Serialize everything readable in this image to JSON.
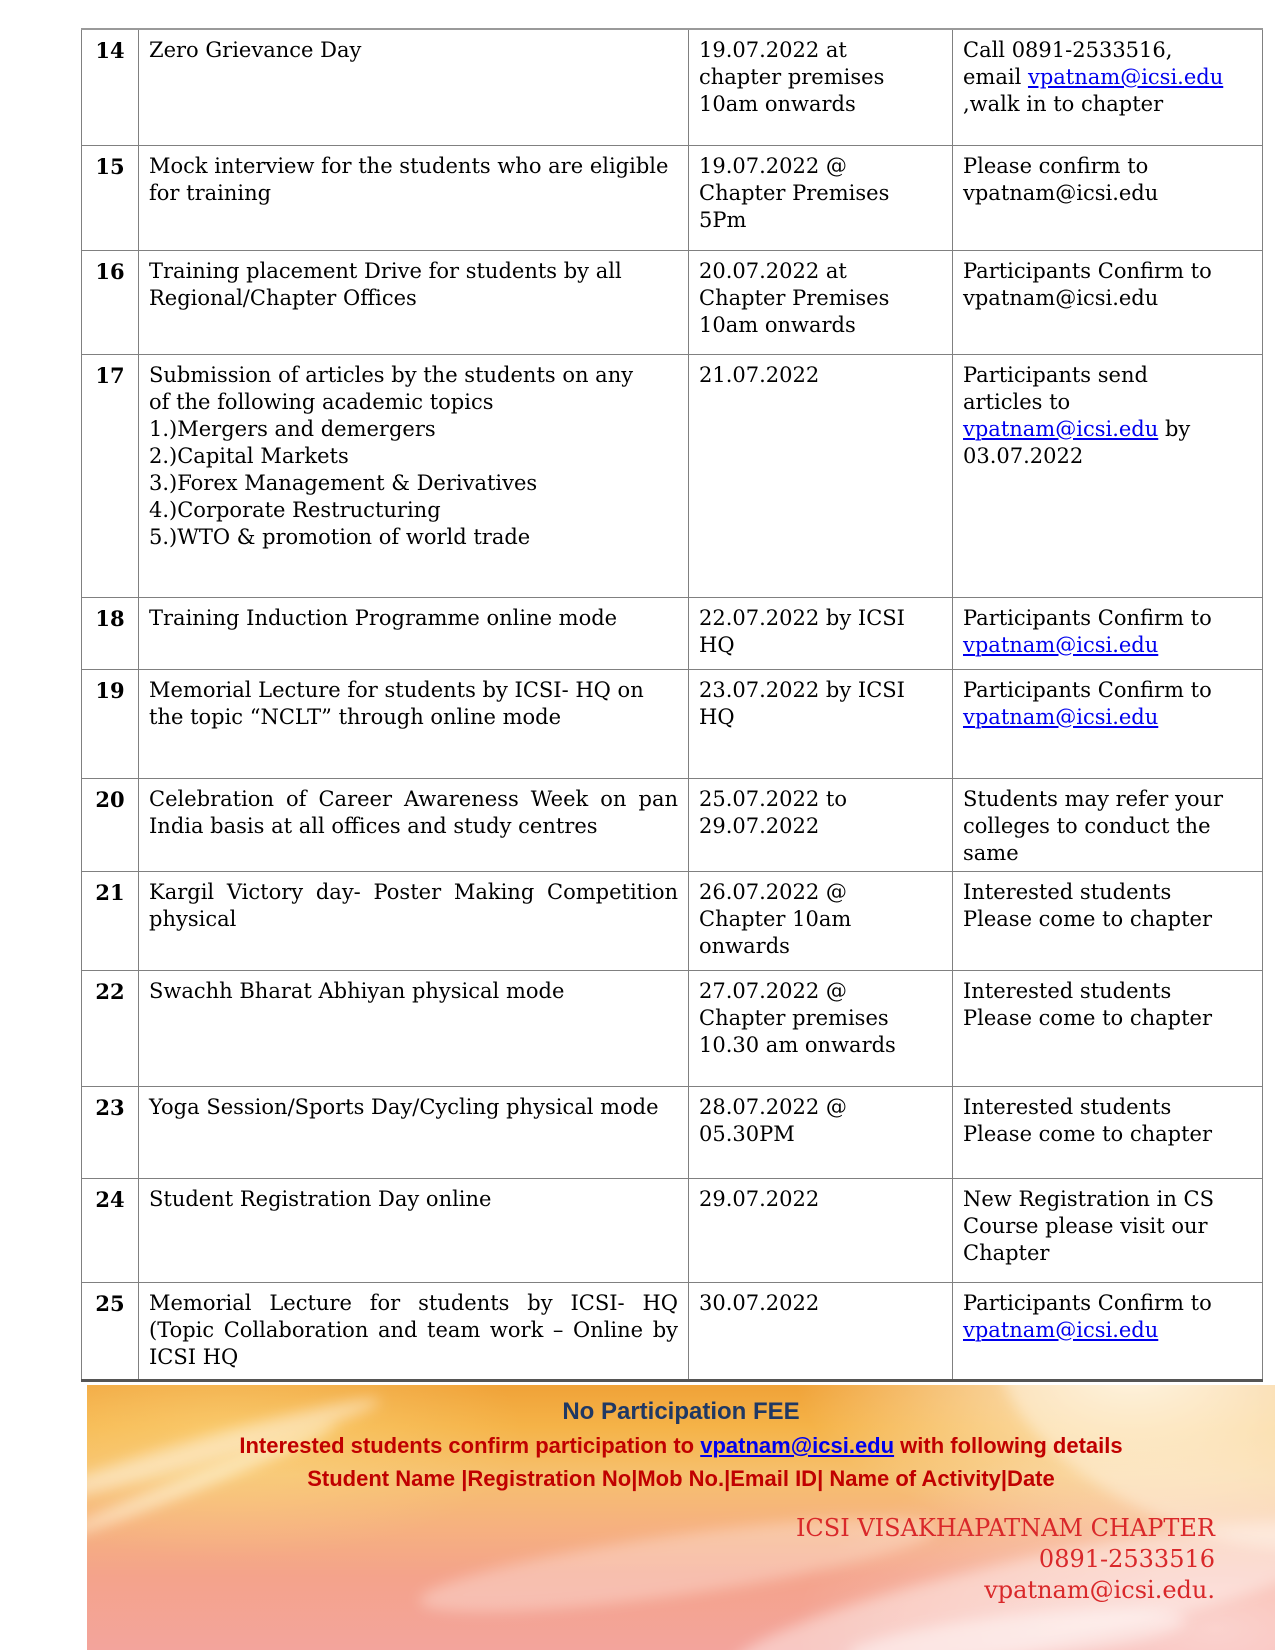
{
  "table": {
    "rows": [
      {
        "num": "14",
        "justify": false,
        "desc": [
          "Zero Grievance Day"
        ],
        "date": [
          "19.07.2022 at",
          "chapter premises",
          "10am onwards"
        ],
        "contact": [
          {
            "t": "Call 0891-2533516,",
            "br": true
          },
          {
            "t": "email "
          },
          {
            "t": "vpatnam@icsi.edu",
            "link": true
          },
          {
            "t": "",
            "br": true
          },
          {
            "t": ",walk in to chapter"
          }
        ]
      },
      {
        "num": "15",
        "justify": false,
        "desc": [
          "Mock interview for the students who are eligible for training"
        ],
        "date": [
          "19.07.2022 @",
          "Chapter Premises",
          "5Pm"
        ],
        "contact": [
          {
            "t": "Please confirm to",
            "br": true
          },
          {
            "t": "vpatnam@icsi.edu"
          }
        ]
      },
      {
        "num": "16",
        "justify": false,
        "desc": [
          "Training placement Drive for students by all Regional/Chapter Offices"
        ],
        "date": [
          "20.07.2022 at",
          "Chapter Premises",
          "10am onwards"
        ],
        "contact": [
          {
            "t": "Participants Confirm to",
            "br": true
          },
          {
            "t": "vpatnam@icsi.edu"
          }
        ]
      },
      {
        "num": "17",
        "justify": false,
        "desc": [
          "Submission of articles by the students on any",
          "of the following academic topics",
          "1.)Mergers and demergers",
          "2.)Capital Markets",
          "3.)Forex Management & Derivatives",
          "4.)Corporate Restructuring",
          "5.)WTO & promotion of world trade"
        ],
        "date": [
          "21.07.2022"
        ],
        "contact": [
          {
            "t": "Participants send",
            "br": true
          },
          {
            "t": "articles to",
            "br": true
          },
          {
            "t": "vpatnam@icsi.edu",
            "link": true
          },
          {
            "t": " by",
            "br": true
          },
          {
            "t": "03.07.2022"
          }
        ]
      },
      {
        "num": "18",
        "justify": false,
        "desc": [
          "Training Induction Programme online mode"
        ],
        "date": [
          "22.07.2022 by ICSI",
          "HQ"
        ],
        "contact": [
          {
            "t": "Participants Confirm to",
            "br": true
          },
          {
            "t": "vpatnam@icsi.edu",
            "link": true
          }
        ]
      },
      {
        "num": "19",
        "justify": false,
        "desc": [
          "Memorial Lecture for students by ICSI- HQ on the topic  “NCLT” through online mode"
        ],
        "date": [
          "23.07.2022 by ICSI",
          "HQ"
        ],
        "contact": [
          {
            "t": "Participants Confirm to",
            "br": true
          },
          {
            "t": "vpatnam@icsi.edu",
            "link": true
          }
        ]
      },
      {
        "num": "20",
        "justify": true,
        "desc": [
          "Celebration of Career Awareness Week on pan India basis at all offices and study centres"
        ],
        "date": [
          "25.07.2022 to",
          "29.07.2022"
        ],
        "contact": [
          {
            "t": "Students may refer your",
            "br": true
          },
          {
            "t": "colleges to conduct the",
            "br": true
          },
          {
            "t": "same"
          }
        ]
      },
      {
        "num": "21",
        "justify": true,
        "desc": [
          "Kargil Victory day- Poster Making Competition physical"
        ],
        "date": [
          "26.07.2022 @",
          "Chapter 10am",
          "onwards"
        ],
        "contact": [
          {
            "t": "Interested students",
            "br": true
          },
          {
            "t": "Please come to chapter"
          }
        ]
      },
      {
        "num": "22",
        "justify": false,
        "desc": [
          "Swachh Bharat Abhiyan physical mode"
        ],
        "date": [
          "27.07.2022 @",
          "Chapter premises",
          "10.30 am onwards"
        ],
        "contact": [
          {
            "t": "Interested students",
            "br": true
          },
          {
            "t": "Please come to chapter"
          }
        ]
      },
      {
        "num": "23",
        "justify": true,
        "desc": [
          "Yoga Session/Sports Day/Cycling  physical mode"
        ],
        "date": [
          "28.07.2022 @",
          "05.30PM"
        ],
        "contact": [
          {
            "t": "Interested students",
            "br": true
          },
          {
            "t": "Please come to chapter"
          }
        ]
      },
      {
        "num": "24",
        "justify": false,
        "desc": [
          "Student Registration Day online"
        ],
        "date": [
          "29.07.2022"
        ],
        "contact": [
          {
            "t": "New Registration in CS",
            "br": true
          },
          {
            "t": "Course please visit our",
            "br": true
          },
          {
            "t": "Chapter"
          }
        ]
      },
      {
        "num": "25",
        "justify": true,
        "desc": [
          "Memorial Lecture for students by ICSI- HQ (Topic Collaboration and team work – Online by ICSI HQ"
        ],
        "date": [
          "30.07.2022"
        ],
        "contact": [
          {
            "t": "Participants Confirm to",
            "br": true
          },
          {
            "t": "vpatnam@icsi.edu",
            "link": true
          }
        ]
      }
    ]
  },
  "footer": {
    "no_fee": "No Participation FEE",
    "confirm_prefix": "Interested students confirm participation to ",
    "confirm_link": "vpatnam@icsi.edu",
    "confirm_suffix": " with following details",
    "fields_line": "Student Name |Registration No|Mob No.|Email ID| Name of Activity|Date",
    "org_name": "ICSI VISAKHAPATNAM CHAPTER",
    "org_phone": "0891-2533516",
    "org_email": "vpatnam@icsi.edu."
  },
  "colors": {
    "row_number_navy": "#1F3864",
    "footer_navy": "#1F3864",
    "footer_red": "#C00000",
    "contact_red": "#D9282A",
    "link_blue": "#0000EE",
    "table_border_gray": "#808080",
    "banner_orange_top": "#F0A238",
    "banner_pink_bottom": "#F3A49C"
  }
}
